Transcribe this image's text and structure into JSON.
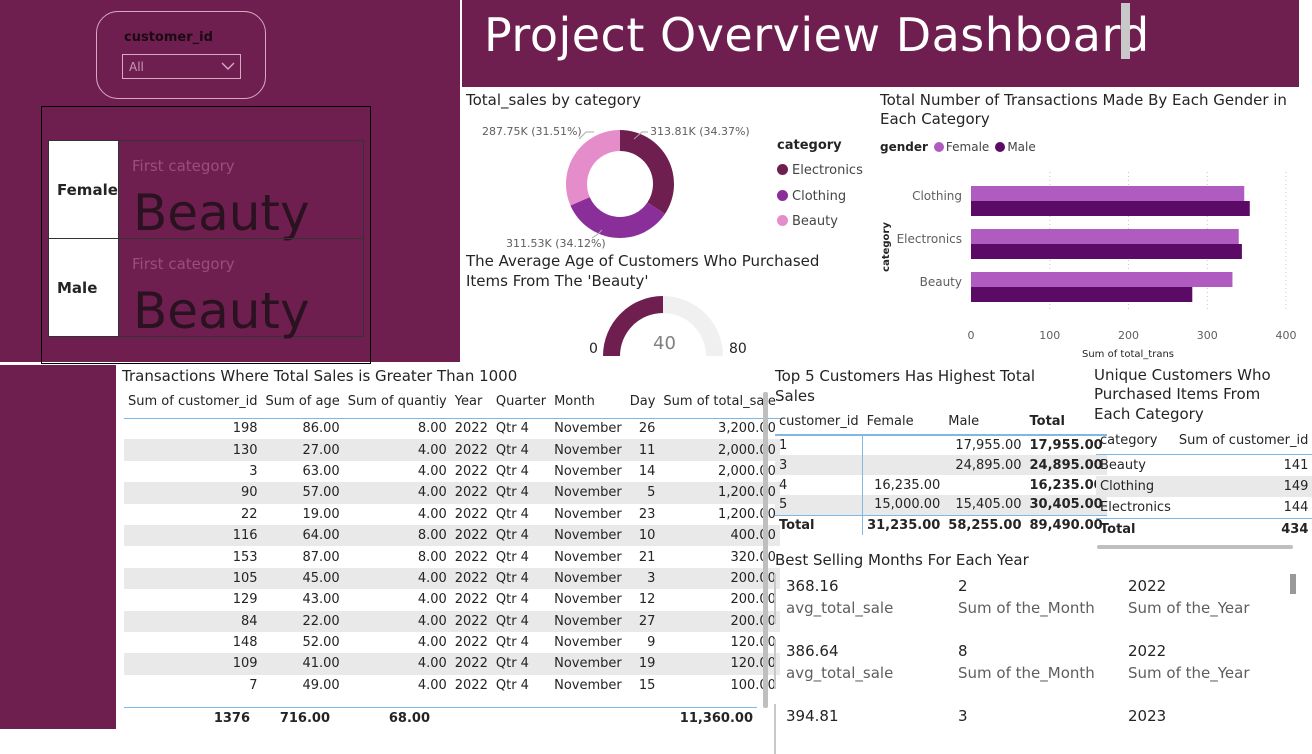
{
  "slicer": {
    "label": "customer_id",
    "value": "All"
  },
  "cards": [
    {
      "label": "Female",
      "caption": "First category",
      "value": "Beauty"
    },
    {
      "label": "Male",
      "caption": "First category",
      "value": "Beauty"
    }
  ],
  "header": {
    "title": "Project Overview Dashboard"
  },
  "donut": {
    "title": "Total_sales by category",
    "legend_title": "category",
    "chart_data": {
      "type": "pie",
      "labels": [
        "Electronics",
        "Clothing",
        "Beauty"
      ],
      "values": [
        313.81,
        311.53,
        287.75
      ],
      "data_labels": [
        "313.81K (34.37%)",
        "311.53K (34.12%)",
        "287.75K (31.51%)"
      ],
      "colors": [
        "#6e1f4f",
        "#8a2e99",
        "#e58ccb"
      ]
    }
  },
  "bar": {
    "title_line1": "Total Number of Transactions Made By Each Gender in",
    "title_line2": "Each Category",
    "legend_title": "gender",
    "chart_data": {
      "type": "bar",
      "categories": [
        "Clothing",
        "Electronics",
        "Beauty"
      ],
      "series": [
        {
          "name": "Female",
          "values": [
            347,
            340,
            332
          ],
          "color": "#b05bc0"
        },
        {
          "name": "Male",
          "values": [
            354,
            344,
            281
          ],
          "color": "#5b0a66"
        }
      ],
      "xlabel": "Sum of total_trans",
      "ylabel": "category",
      "xlim": [
        0,
        400
      ],
      "xticks": [
        "0",
        "100",
        "200",
        "300",
        "400"
      ]
    }
  },
  "gauge": {
    "title_line1": "The Average Age of Customers Who Purchased",
    "title_line2": "Items From The 'Beauty'",
    "value": 40,
    "min": 0,
    "max": 80,
    "value_label": "40",
    "min_label": "0",
    "max_label": "80"
  },
  "transactions": {
    "title": "Transactions Where Total Sales is Greater Than 1000",
    "columns": [
      "Sum of customer_id",
      "Sum of age",
      "Sum of quantiy",
      "Year",
      "Quarter",
      "Month",
      "Day",
      "Sum of total_sale"
    ],
    "rows": [
      [
        "198",
        "86.00",
        "8.00",
        "2022",
        "Qtr 4",
        "November",
        "26",
        "3,200.00"
      ],
      [
        "130",
        "27.00",
        "4.00",
        "2022",
        "Qtr 4",
        "November",
        "11",
        "2,000.00"
      ],
      [
        "3",
        "63.00",
        "4.00",
        "2022",
        "Qtr 4",
        "November",
        "14",
        "2,000.00"
      ],
      [
        "90",
        "57.00",
        "4.00",
        "2022",
        "Qtr 4",
        "November",
        "5",
        "1,200.00"
      ],
      [
        "22",
        "19.00",
        "4.00",
        "2022",
        "Qtr 4",
        "November",
        "23",
        "1,200.00"
      ],
      [
        "116",
        "64.00",
        "8.00",
        "2022",
        "Qtr 4",
        "November",
        "10",
        "400.00"
      ],
      [
        "153",
        "87.00",
        "8.00",
        "2022",
        "Qtr 4",
        "November",
        "21",
        "320.00"
      ],
      [
        "105",
        "45.00",
        "4.00",
        "2022",
        "Qtr 4",
        "November",
        "3",
        "200.00"
      ],
      [
        "129",
        "43.00",
        "4.00",
        "2022",
        "Qtr 4",
        "November",
        "12",
        "200.00"
      ],
      [
        "84",
        "22.00",
        "4.00",
        "2022",
        "Qtr 4",
        "November",
        "27",
        "200.00"
      ],
      [
        "148",
        "52.00",
        "4.00",
        "2022",
        "Qtr 4",
        "November",
        "9",
        "120.00"
      ],
      [
        "109",
        "41.00",
        "4.00",
        "2022",
        "Qtr 4",
        "November",
        "19",
        "120.00"
      ],
      [
        "7",
        "49.00",
        "4.00",
        "2022",
        "Qtr 4",
        "November",
        "15",
        "100.00"
      ]
    ],
    "totals": [
      "1376",
      "716.00",
      "68.00",
      "",
      "",
      "",
      "",
      "11,360.00"
    ]
  },
  "top5": {
    "title_line1": "Top 5 Customers Has Highest Total",
    "title_line2": "Sales",
    "columns": [
      "customer_id",
      "Female",
      "Male",
      "Total"
    ],
    "rows": [
      [
        "1",
        "",
        "17,955.00",
        "17,955.00"
      ],
      [
        "3",
        "",
        "24,895.00",
        "24,895.00"
      ],
      [
        "4",
        "16,235.00",
        "",
        "16,235.00"
      ],
      [
        "5",
        "15,000.00",
        "15,405.00",
        "30,405.00"
      ]
    ],
    "totals": [
      "Total",
      "31,235.00",
      "58,255.00",
      "89,490.00"
    ]
  },
  "unique": {
    "title_line1": "Unique Customers Who",
    "title_line2": "Purchased Items From",
    "title_line3": "Each Category",
    "columns": [
      "category",
      "Sum of customer_id"
    ],
    "rows": [
      [
        "Beauty",
        "141"
      ],
      [
        "Clothing",
        "149"
      ],
      [
        "Electronics",
        "144"
      ]
    ],
    "totals": [
      "Total",
      "434"
    ]
  },
  "best_months": {
    "title": "Best Selling Months For Each Year",
    "rows": [
      {
        "avg": "368.16",
        "avg_label": "avg_total_sale",
        "month": "2",
        "month_label": "Sum of the_Month",
        "year": "2022",
        "year_label": "Sum of the_Year"
      },
      {
        "avg": "386.64",
        "avg_label": "avg_total_sale",
        "month": "8",
        "month_label": "Sum of the_Month",
        "year": "2022",
        "year_label": "Sum of the_Year"
      },
      {
        "avg": "394.81",
        "month": "3",
        "year": "2023"
      }
    ]
  }
}
